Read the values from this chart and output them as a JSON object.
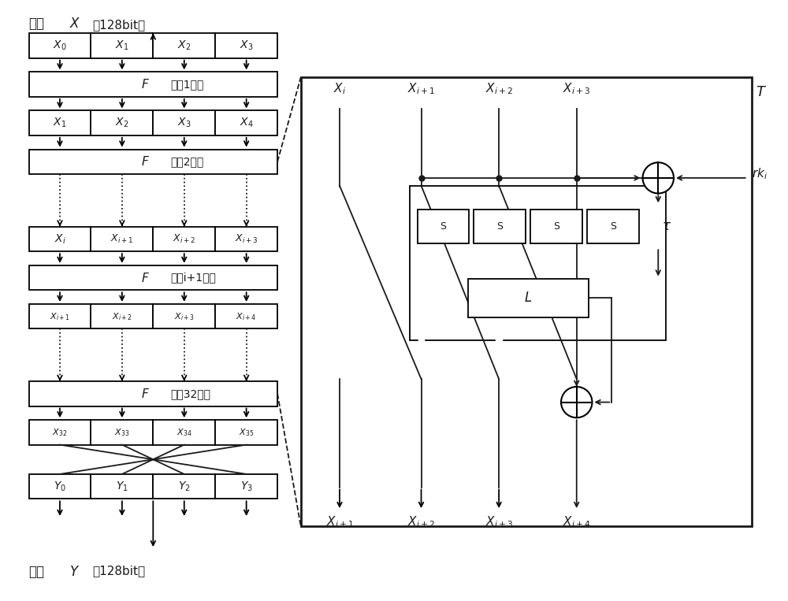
{
  "bg_color": "#ffffff",
  "line_color": "#1a1a1a",
  "fig_width": 10.0,
  "fig_height": 7.63,
  "title_text": "明文X（128bit）",
  "bottom_text": "密文Y（128bit）",
  "f1_label": "F（第1轮）",
  "f2_label": "F（第2轮）",
  "fi_label": "F（第i+1轮）",
  "f32_label": "F（第32轮）"
}
